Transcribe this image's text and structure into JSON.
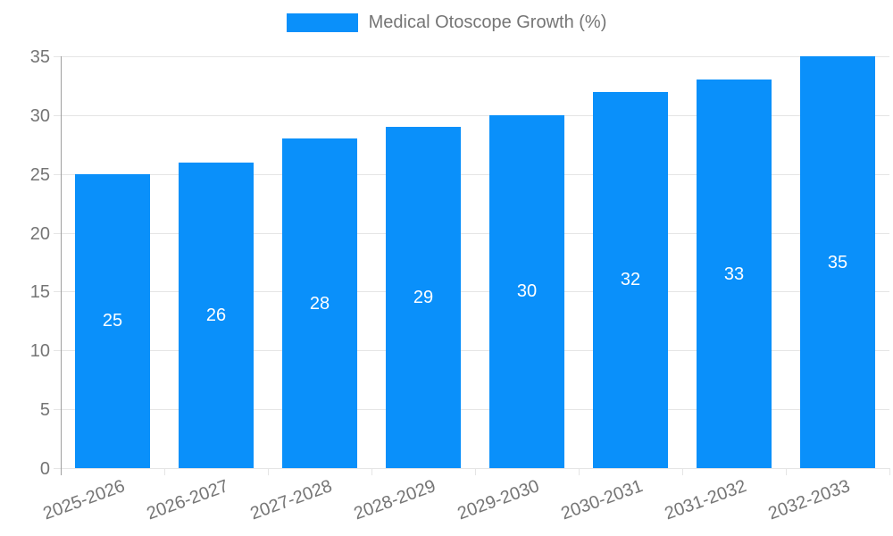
{
  "chart_data": {
    "type": "bar",
    "title": "Medical Otoscope Growth (%)",
    "categories": [
      "2025-2026",
      "2026-2027",
      "2027-2028",
      "2028-2029",
      "2029-2030",
      "2030-2031",
      "2031-2032",
      "2032-2033"
    ],
    "values": [
      25,
      26,
      28,
      29,
      30,
      32,
      33,
      35
    ],
    "value_labels": [
      "25",
      "26",
      "28",
      "29",
      "30",
      "32",
      "33",
      "35"
    ],
    "xlabel": "",
    "ylabel": "",
    "ylim": [
      0,
      35
    ],
    "y_tick_step": 5,
    "y_tick_labels": [
      "0",
      "5",
      "10",
      "15",
      "20",
      "25",
      "30",
      "35"
    ],
    "grid": "horizontal-on",
    "legend_position": "top-center",
    "colors": {
      "bar": "#0a90fa",
      "grid": "#e5e5e5",
      "axis": "#9e9e9e",
      "tick_text": "#757575",
      "legend_text": "#757575",
      "value_text": "#ffffff",
      "background": "#ffffff"
    }
  }
}
